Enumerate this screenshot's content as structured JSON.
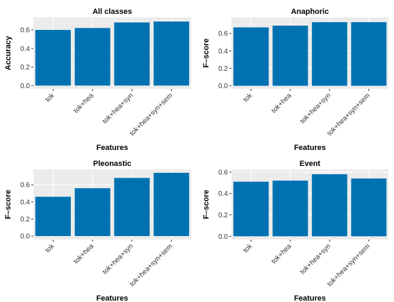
{
  "chart_data": [
    {
      "type": "bar",
      "title": "All classes",
      "xlabel": "Features",
      "ylabel": "Accuracy",
      "categories": [
        "tok",
        "tok+hea",
        "tok+hea+syn",
        "tok+hea+syn+sem"
      ],
      "values": [
        0.6,
        0.62,
        0.68,
        0.69
      ],
      "ylim": [
        -0.035,
        0.735
      ],
      "yticks": [
        0.0,
        0.2,
        0.4,
        0.6
      ],
      "ytick_labels": [
        "0.0",
        "0.2",
        "0.4",
        "0.6"
      ],
      "bar_color": "#0072B2",
      "grid": true,
      "legend": "none"
    },
    {
      "type": "bar",
      "title": "Anaphoric",
      "xlabel": "Features",
      "ylabel": "F–score",
      "categories": [
        "tok",
        "tok+hea",
        "tok+hea+syn",
        "tok+hea+syn+sem"
      ],
      "values": [
        0.67,
        0.69,
        0.73,
        0.73
      ],
      "ylim": [
        -0.035,
        0.785
      ],
      "yticks": [
        0.0,
        0.2,
        0.4,
        0.6
      ],
      "ytick_labels": [
        "0.0",
        "0.2",
        "0.4",
        "0.6"
      ],
      "bar_color": "#0072B2",
      "grid": true,
      "legend": "none"
    },
    {
      "type": "bar",
      "title": "Pleonastic",
      "xlabel": "Features",
      "ylabel": "F–score",
      "categories": [
        "tok",
        "tok+hea",
        "tok+hea+syn",
        "tok+hea+syn+sem"
      ],
      "values": [
        0.46,
        0.56,
        0.68,
        0.74
      ],
      "ylim": [
        -0.04,
        0.78
      ],
      "yticks": [
        0.0,
        0.2,
        0.4,
        0.6
      ],
      "ytick_labels": [
        "0.0",
        "0.2",
        "0.4",
        "0.6"
      ],
      "bar_color": "#0072B2",
      "grid": true,
      "legend": "none"
    },
    {
      "type": "bar",
      "title": "Event",
      "xlabel": "Features",
      "ylabel": "F–score",
      "categories": [
        "tok",
        "tok+hea",
        "tok+hea+syn",
        "tok+hea+syn+sem"
      ],
      "values": [
        0.51,
        0.52,
        0.58,
        0.54
      ],
      "ylim": [
        -0.03,
        0.625
      ],
      "yticks": [
        0.0,
        0.2,
        0.4,
        0.6
      ],
      "ytick_labels": [
        "0.0",
        "0.2",
        "0.4",
        "0.6"
      ],
      "bar_color": "#0072B2",
      "grid": true,
      "legend": "none"
    }
  ]
}
